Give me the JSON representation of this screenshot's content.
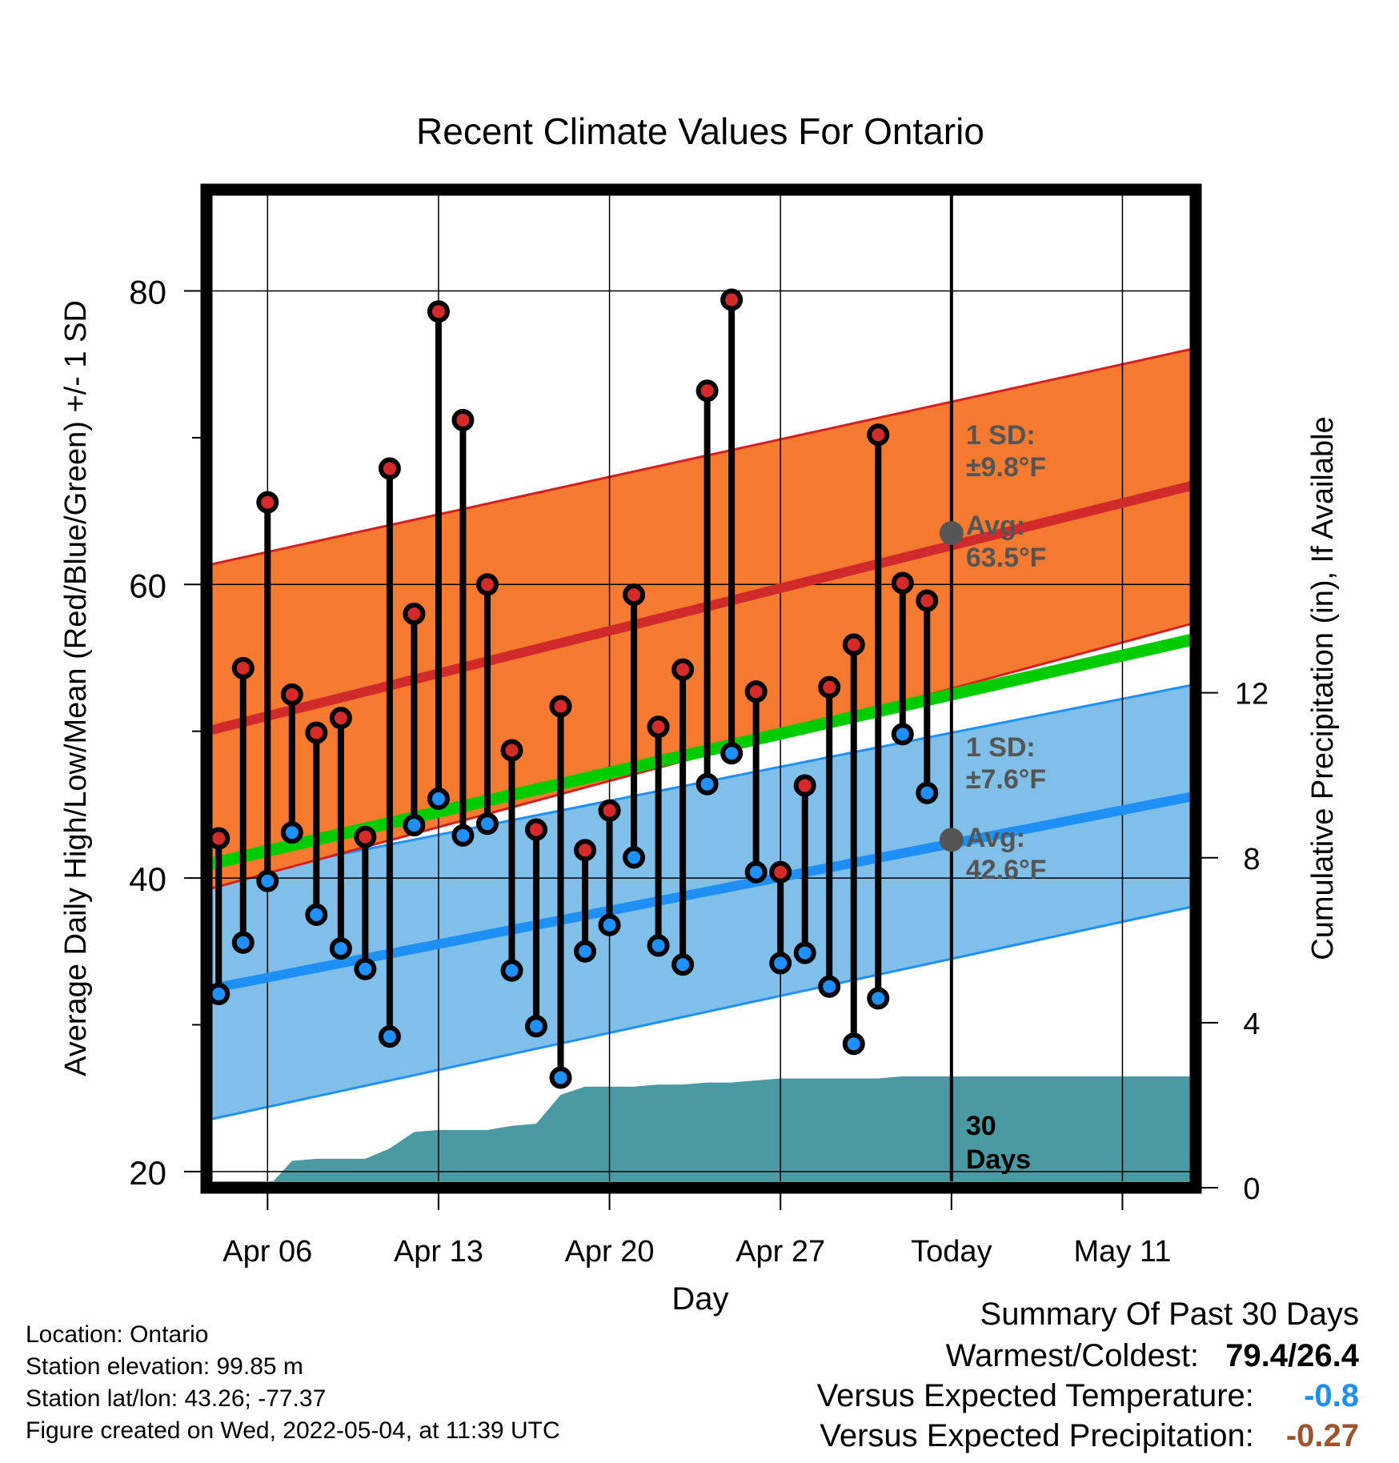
{
  "chart_data": {
    "type": "line",
    "title": "Recent Climate Values For Ontario",
    "xlabel": "Day",
    "ylabel_left": "Average Daily High/Low/Mean (Red/Blue/Green) +/- 1 SD",
    "ylabel_right": "Cumulative Precipitation (in), If Available",
    "x_ticks": [
      "Apr 06",
      "Apr 13",
      "Apr 20",
      "Apr 27",
      "Today",
      "May 11"
    ],
    "x_tick_days": [
      3,
      10,
      17,
      24,
      31,
      38
    ],
    "x_range_days": [
      0.5,
      41
    ],
    "y_left_ticks": [
      20,
      40,
      60,
      80
    ],
    "y_left_minor_ticks": [
      30,
      50,
      70
    ],
    "y_left_range": [
      18.9,
      86.9
    ],
    "y_right_ticks": [
      0,
      4,
      8,
      12
    ],
    "y_right_range": [
      0,
      24.2
    ],
    "grid": true,
    "observed": {
      "days": [
        1,
        2,
        3,
        4,
        5,
        6,
        7,
        8,
        9,
        10,
        11,
        12,
        13,
        14,
        15,
        16,
        17,
        18,
        19,
        20,
        21,
        22,
        23,
        24,
        25,
        26,
        27,
        28,
        29,
        30
      ],
      "highs": [
        42.7,
        54.3,
        65.6,
        52.5,
        49.9,
        50.9,
        42.8,
        67.9,
        58.0,
        78.6,
        71.2,
        60.0,
        48.7,
        43.3,
        51.7,
        41.9,
        44.6,
        59.3,
        50.3,
        54.2,
        73.2,
        79.4,
        52.7,
        40.4,
        46.3,
        53.0,
        55.9,
        70.2,
        60.1,
        58.9
      ],
      "lows": [
        32.1,
        35.6,
        39.8,
        43.1,
        37.5,
        35.2,
        33.8,
        29.2,
        43.6,
        45.4,
        42.9,
        43.7,
        33.7,
        29.9,
        26.4,
        35.0,
        36.8,
        41.4,
        35.4,
        34.1,
        46.4,
        48.5,
        40.4,
        34.2,
        34.9,
        32.6,
        28.7,
        31.8,
        49.8,
        45.8
      ]
    },
    "normal_high": {
      "days": [
        0.5,
        41
      ],
      "mean": [
        50.0,
        66.8
      ],
      "sd_band_low": [
        39.2,
        57.4
      ],
      "sd_band_high": [
        61.3,
        76.1
      ]
    },
    "normal_low": {
      "days": [
        0.5,
        41
      ],
      "mean": [
        32.4,
        45.6
      ],
      "sd_band_low": [
        23.5,
        38.1
      ],
      "sd_band_high": [
        39.8,
        53.2
      ]
    },
    "normal_mean": {
      "days": [
        0.5,
        41
      ],
      "values": [
        40.9,
        56.3
      ]
    },
    "cumulative_precip": {
      "days": [
        3,
        4,
        5,
        6,
        7,
        8,
        9,
        10,
        11,
        12,
        13,
        14,
        15,
        16,
        17,
        18,
        19,
        20,
        21,
        22,
        23,
        24,
        25,
        26,
        27,
        28,
        29,
        30,
        41
      ],
      "values": [
        0,
        0.65,
        0.7,
        0.7,
        0.7,
        0.95,
        1.35,
        1.4,
        1.4,
        1.4,
        1.5,
        1.55,
        2.25,
        2.45,
        2.45,
        2.45,
        2.5,
        2.5,
        2.55,
        2.55,
        2.6,
        2.65,
        2.65,
        2.65,
        2.65,
        2.65,
        2.7,
        2.7,
        2.7
      ]
    },
    "today_annotations": {
      "high_sd": "1 SD:",
      "high_sd_value": "±9.8°F",
      "high_avg": "Avg:",
      "high_avg_value": "63.5°F",
      "high_avg_num": 63.5,
      "low_sd": "1 SD:",
      "low_sd_value": "±7.6°F",
      "low_avg": "Avg:",
      "low_avg_value": "42.6°F",
      "low_avg_num": 42.6,
      "days_label_1": "30",
      "days_label_2": "Days"
    }
  },
  "colors": {
    "high_band": "#f47a30",
    "high_band_edge": "#d62020",
    "high_mean": "#d12a2a",
    "low_band": "#80c0e8",
    "low_band_edge": "#1e90ff",
    "low_mean": "#1e8ff5",
    "normal_mean": "#00cc00",
    "precip": "#4a9aa3",
    "high_dot": "#d42a2a",
    "low_dot": "#1e90ff",
    "annotation": "#555555",
    "temp_departure": "#1e8ff5",
    "precip_departure": "#a0522d"
  },
  "info": {
    "location": "Location: Ontario",
    "elevation": "Station elevation: 99.85 m",
    "latlon": "Station lat/lon: 43.26; -77.37",
    "created": "Figure created on Wed, 2022-05-04, at 11:39 UTC"
  },
  "summary": {
    "title": "Summary Of Past 30 Days",
    "warm_cold_label": "Warmest/Coldest:",
    "warm_cold_value": "79.4/26.4",
    "temp_label": "Versus Expected Temperature:",
    "temp_value": "-0.8",
    "precip_label": "Versus Expected Precipitation:",
    "precip_value": "-0.27"
  }
}
